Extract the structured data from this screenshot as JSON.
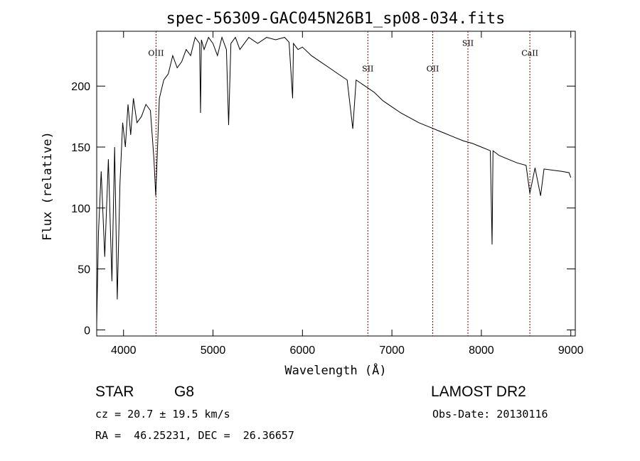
{
  "chart_data": {
    "type": "line",
    "title": "spec-56309-GAC045N26B1_sp08-034.fits",
    "xlabel": "Wavelength (Å)",
    "ylabel": "Flux (relative)",
    "xlim": [
      3700,
      9050
    ],
    "ylim": [
      -5,
      245
    ],
    "xticks": [
      {
        "value": 4000,
        "label": "4000"
      },
      {
        "value": 5000,
        "label": "5000"
      },
      {
        "value": 6000,
        "label": "6000"
      },
      {
        "value": 7000,
        "label": "7000"
      },
      {
        "value": 8000,
        "label": "8000"
      },
      {
        "value": 9000,
        "label": "9000"
      }
    ],
    "yticks": [
      {
        "value": 0,
        "label": "0"
      },
      {
        "value": 50,
        "label": "50"
      },
      {
        "value": 100,
        "label": "100"
      },
      {
        "value": 150,
        "label": "150"
      },
      {
        "value": 200,
        "label": "200"
      }
    ],
    "spectral_lines": [
      {
        "name": "OIII",
        "wavelength": 4363,
        "label_y": 225
      },
      {
        "name": "SII",
        "wavelength": 6731,
        "label_y": 212
      },
      {
        "name": "OII",
        "wavelength": 7456,
        "label_y": 212
      },
      {
        "name": "SII",
        "wavelength": 7850,
        "label_y": 233
      },
      {
        "name": "CaII",
        "wavelength": 8542,
        "label_y": 225
      }
    ],
    "series": [
      {
        "name": "flux",
        "x": [
          3700,
          3720,
          3750,
          3790,
          3830,
          3870,
          3900,
          3930,
          3960,
          3990,
          4020,
          4050,
          4080,
          4110,
          4150,
          4200,
          4250,
          4300,
          4340,
          4360,
          4400,
          4450,
          4500,
          4550,
          4600,
          4650,
          4700,
          4750,
          4800,
          4850,
          4861,
          4870,
          4900,
          4950,
          5000,
          5050,
          5100,
          5150,
          5175,
          5200,
          5250,
          5300,
          5400,
          5500,
          5600,
          5700,
          5800,
          5850,
          5890,
          5900,
          5950,
          6000,
          6100,
          6200,
          6300,
          6400,
          6500,
          6563,
          6600,
          6700,
          6800,
          6900,
          7000,
          7100,
          7200,
          7300,
          7400,
          7500,
          7600,
          7700,
          7800,
          7900,
          8000,
          8100,
          8120,
          8130,
          8200,
          8300,
          8400,
          8500,
          8542,
          8600,
          8662,
          8700,
          8800,
          8900,
          8980,
          9000
        ],
        "y": [
          5,
          80,
          130,
          60,
          140,
          40,
          150,
          25,
          120,
          170,
          150,
          185,
          160,
          190,
          170,
          175,
          185,
          180,
          140,
          110,
          190,
          205,
          210,
          225,
          215,
          220,
          230,
          225,
          240,
          235,
          178,
          238,
          230,
          240,
          235,
          225,
          240,
          230,
          168,
          235,
          240,
          230,
          240,
          235,
          240,
          238,
          240,
          236,
          190,
          235,
          230,
          232,
          225,
          220,
          215,
          210,
          205,
          165,
          205,
          200,
          195,
          188,
          183,
          178,
          174,
          170,
          167,
          164,
          161,
          158,
          155,
          153,
          150,
          147,
          70,
          147,
          143,
          140,
          137,
          135,
          112,
          133,
          110,
          132,
          131,
          130,
          129,
          125
        ]
      }
    ]
  },
  "info": {
    "object_type": "STAR",
    "subclass": "G8",
    "survey": "LAMOST DR2",
    "redshift": "cz = 20.7 ± 19.5 km/s",
    "obs_date": "Obs-Date: 20130116",
    "coords": "RA =  46.25231, DEC =  26.36657"
  }
}
